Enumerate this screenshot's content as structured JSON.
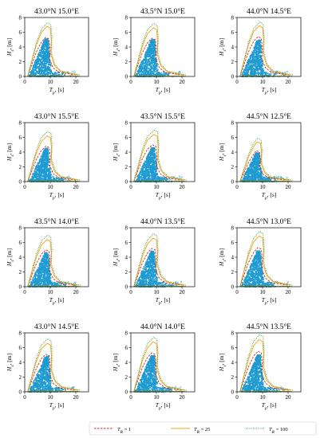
{
  "figure": {
    "ylabel": "H_s, [m]",
    "xlabel": "T_p, [s]",
    "xticks": [
      0,
      10,
      20
    ],
    "yticks": [
      0,
      2,
      4,
      6,
      8
    ]
  },
  "legend": {
    "entries": [
      {
        "label": "T_R = 1",
        "color": "#d62728",
        "style": "dashed"
      },
      {
        "label": "T_R = 25",
        "color": "#ff9f10",
        "style": "solid"
      },
      {
        "label": "T_R = 100",
        "color": "#2ca02c",
        "style": "dotted"
      }
    ]
  },
  "colors": {
    "scatter": "#1f9bd0"
  },
  "chart_data": [
    {
      "type": "scatter",
      "title": "43.0°N 15.0°E",
      "xlim": [
        0,
        25
      ],
      "ylim": [
        0,
        8
      ],
      "contour_peak": {
        "T_R=1": [
          9.5,
          5.3
        ],
        "T_R=25": [
          10.0,
          6.8
        ],
        "T_R=100": [
          10.2,
          7.3
        ]
      },
      "scatter_peak": [
        8.3,
        5.1
      ]
    },
    {
      "type": "scatter",
      "title": "43.5°N 15.0°E",
      "xlim": [
        0,
        25
      ],
      "ylim": [
        0,
        8
      ],
      "contour_peak": {
        "T_R=1": [
          9.6,
          5.2
        ],
        "T_R=25": [
          10.1,
          6.6
        ],
        "T_R=100": [
          10.3,
          7.2
        ]
      },
      "scatter_peak": [
        8.4,
        5.0
      ]
    },
    {
      "type": "scatter",
      "title": "44.0°N 14.5°E",
      "xlim": [
        0,
        25
      ],
      "ylim": [
        0,
        8
      ],
      "contour_peak": {
        "T_R=1": [
          9.5,
          5.4
        ],
        "T_R=25": [
          10.0,
          6.9
        ],
        "T_R=100": [
          10.2,
          7.4
        ]
      },
      "scatter_peak": [
        8.3,
        4.9
      ]
    },
    {
      "type": "scatter",
      "title": "43.0°N 15.5°E",
      "xlim": [
        0,
        25
      ],
      "ylim": [
        0,
        8
      ],
      "contour_peak": {
        "T_R=1": [
          9.6,
          4.8
        ],
        "T_R=25": [
          10.1,
          6.2
        ],
        "T_R=100": [
          10.3,
          6.8
        ]
      },
      "scatter_peak": [
        8.3,
        4.5
      ]
    },
    {
      "type": "scatter",
      "title": "43.5°N 15.5°E",
      "xlim": [
        0,
        25
      ],
      "ylim": [
        0,
        8
      ],
      "contour_peak": {
        "T_R=1": [
          9.8,
          5.0
        ],
        "T_R=25": [
          10.3,
          6.4
        ],
        "T_R=100": [
          10.5,
          7.0
        ]
      },
      "scatter_peak": [
        8.5,
        4.6
      ]
    },
    {
      "type": "scatter",
      "title": "44.5°N 12.5°E",
      "xlim": [
        0,
        25
      ],
      "ylim": [
        0,
        8
      ],
      "contour_peak": {
        "T_R=1": [
          8.8,
          4.2
        ],
        "T_R=25": [
          9.2,
          5.4
        ],
        "T_R=100": [
          9.4,
          5.9
        ]
      },
      "scatter_peak": [
        7.8,
        3.9
      ]
    },
    {
      "type": "scatter",
      "title": "43.5°N 14.0°E",
      "xlim": [
        0,
        25
      ],
      "ylim": [
        0,
        8
      ],
      "contour_peak": {
        "T_R=1": [
          9.5,
          5.0
        ],
        "T_R=25": [
          10.0,
          6.4
        ],
        "T_R=100": [
          10.2,
          7.0
        ]
      },
      "scatter_peak": [
        8.3,
        4.6
      ]
    },
    {
      "type": "scatter",
      "title": "44.0°N 13.5°E",
      "xlim": [
        0,
        25
      ],
      "ylim": [
        0,
        8
      ],
      "contour_peak": {
        "T_R=1": [
          9.5,
          5.2
        ],
        "T_R=25": [
          10.0,
          6.6
        ],
        "T_R=100": [
          10.2,
          7.2
        ]
      },
      "scatter_peak": [
        8.3,
        4.8
      ]
    },
    {
      "type": "scatter",
      "title": "44.5°N 13.0°E",
      "xlim": [
        0,
        25
      ],
      "ylim": [
        0,
        8
      ],
      "contour_peak": {
        "T_R=1": [
          9.5,
          5.3
        ],
        "T_R=25": [
          10.0,
          6.9
        ],
        "T_R=100": [
          10.2,
          7.5
        ]
      },
      "scatter_peak": [
        8.3,
        4.9
      ]
    },
    {
      "type": "scatter",
      "title": "43.0°N 14.5°E",
      "xlim": [
        0,
        25
      ],
      "ylim": [
        0,
        8
      ],
      "contour_peak": {
        "T_R=1": [
          9.6,
          5.1
        ],
        "T_R=25": [
          10.1,
          6.6
        ],
        "T_R=100": [
          10.3,
          7.2
        ]
      },
      "scatter_peak": [
        8.4,
        4.8
      ]
    },
    {
      "type": "scatter",
      "title": "44.0°N 14.0°E",
      "xlim": [
        0,
        25
      ],
      "ylim": [
        0,
        8
      ],
      "contour_peak": {
        "T_R=1": [
          9.5,
          5.3
        ],
        "T_R=25": [
          10.0,
          6.8
        ],
        "T_R=100": [
          10.2,
          7.4
        ]
      },
      "scatter_peak": [
        8.3,
        4.9
      ]
    },
    {
      "type": "scatter",
      "title": "44.5°N 13.5°E",
      "xlim": [
        0,
        25
      ],
      "ylim": [
        0,
        8
      ],
      "contour_peak": {
        "T_R=1": [
          9.5,
          5.5
        ],
        "T_R=25": [
          10.0,
          7.1
        ],
        "T_R=100": [
          10.2,
          7.8
        ]
      },
      "scatter_peak": [
        8.3,
        5.0
      ]
    }
  ]
}
